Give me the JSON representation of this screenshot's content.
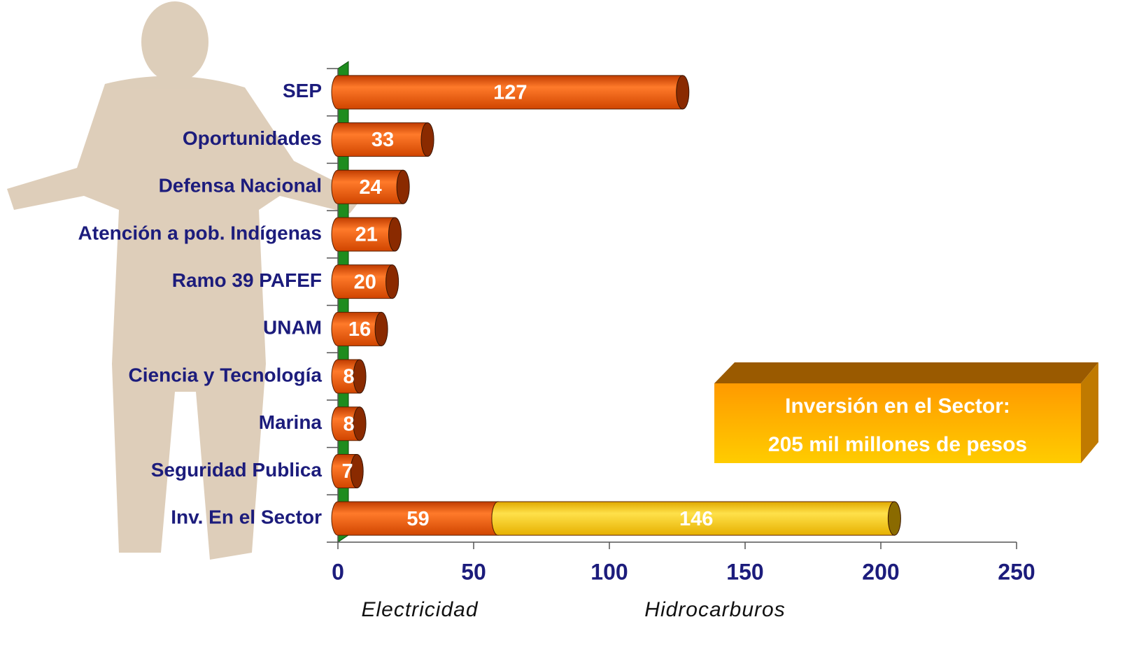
{
  "chart_data": {
    "type": "bar",
    "orientation": "horizontal",
    "stacked": true,
    "categories": [
      "SEP",
      "Oportunidades",
      "Defensa Nacional",
      "Atención a pob. Indígenas",
      "Ramo 39 PAFEF",
      "UNAM",
      "Ciencia y Tecnología",
      "Marina",
      "Seguridad Publica",
      "Inv. En el Sector"
    ],
    "series": [
      {
        "name": "Electricidad",
        "color": "#e8580c",
        "values": [
          127,
          33,
          24,
          21,
          20,
          16,
          8,
          8,
          7,
          59
        ]
      },
      {
        "name": "Hidrocarburos",
        "color": "#f2c200",
        "values": [
          null,
          null,
          null,
          null,
          null,
          null,
          null,
          null,
          null,
          146
        ]
      }
    ],
    "xlim": [
      0,
      250
    ],
    "xticks": [
      0,
      50,
      100,
      150,
      200,
      250
    ],
    "annotations": [
      "Inversión en el Sector:",
      "205 mil millones de pesos"
    ]
  }
}
